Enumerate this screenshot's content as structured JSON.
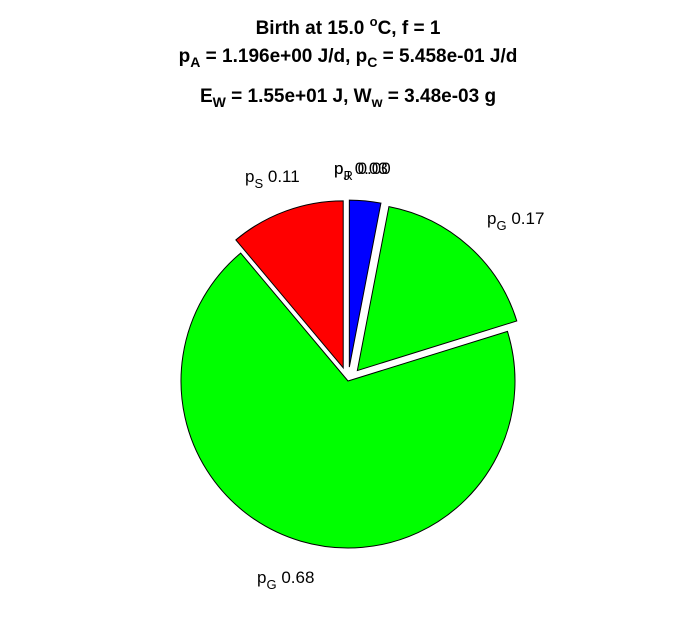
{
  "title": {
    "line1": {
      "pre": "Birth at 15.0 ",
      "sup": "o",
      "post": "C, f = 1"
    },
    "line2": {
      "a": "p",
      "a_sub": "A",
      "a_val": " = 1.196e+00 J/d, p",
      "c_sub": "C",
      "c_val": " = 5.458e-01 J/d"
    },
    "line3": {
      "e": "E",
      "e_sub": "W",
      "e_val": " = 1.55e+01 J, W",
      "w_sub": "w",
      "w_val": " = 3.48e-03 g"
    }
  },
  "chart_data": {
    "type": "pie",
    "slices": [
      {
        "label": "p",
        "sub": "J",
        "value": 0.03,
        "text": "0.03",
        "color": "#0000ff",
        "explode": true
      },
      {
        "label": "p",
        "sub": "G",
        "value": 0.17,
        "text": "0.17",
        "color": "#00ff00",
        "explode": true
      },
      {
        "label": "p",
        "sub": "G",
        "value": 0.68,
        "text": "0.68",
        "color": "#00ff00",
        "explode": false
      },
      {
        "label": "p",
        "sub": "S",
        "value": 0.11,
        "text": "0.11",
        "color": "#ff0000",
        "explode": true
      },
      {
        "label": "p",
        "sub": "R",
        "value": 0.0,
        "text": "0.00",
        "color": "#ffff00",
        "explode": true
      }
    ]
  }
}
